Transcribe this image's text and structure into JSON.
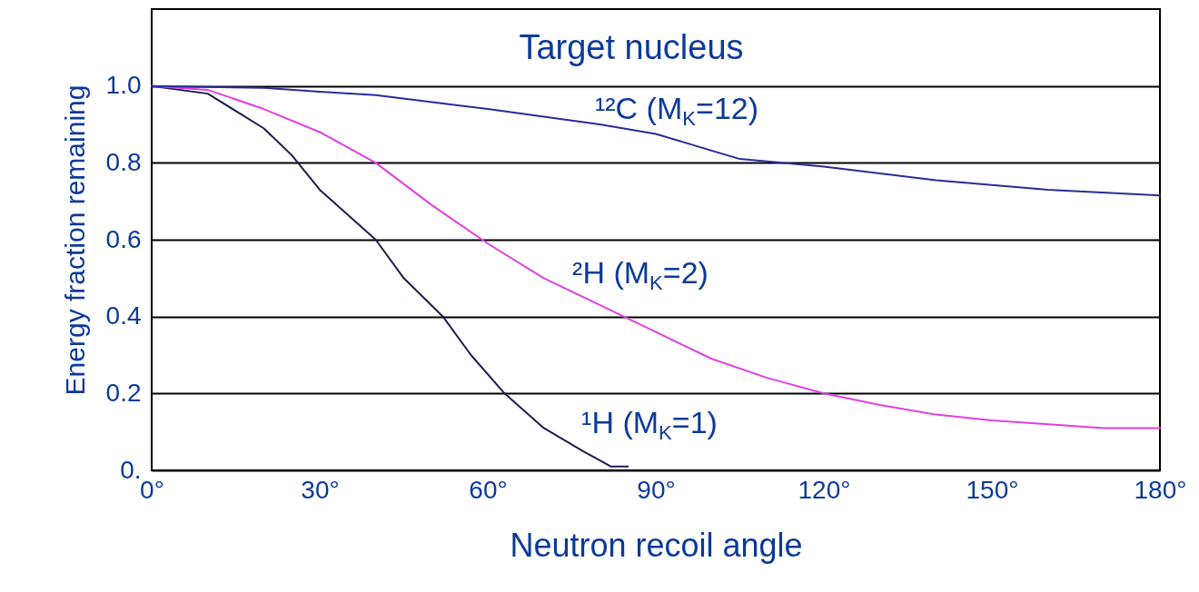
{
  "chart_data": {
    "type": "line",
    "xlabel": "Neutron recoil angle",
    "ylabel": "Energy fraction remaining",
    "annotations": [
      "Target nucleus"
    ],
    "series": [
      {
        "name": "¹H (M$_{K}$=1)",
        "color": "#1c1c50",
        "x": [
          0,
          10,
          20,
          25,
          30,
          40,
          45,
          52,
          57,
          63,
          70,
          77,
          82,
          85
        ],
        "values": [
          1.0,
          0.98,
          0.89,
          0.82,
          0.73,
          0.6,
          0.5,
          0.4,
          0.3,
          0.2,
          0.11,
          0.05,
          0.01,
          0.01
        ]
      },
      {
        "name": "²H (M$_{K}$=2)",
        "color": "#e040e0",
        "x": [
          0,
          10,
          20,
          30,
          40,
          50,
          60,
          70,
          80,
          90,
          100,
          110,
          120,
          130,
          140,
          150,
          160,
          170,
          180
        ],
        "values": [
          1.0,
          0.99,
          0.94,
          0.88,
          0.8,
          0.69,
          0.59,
          0.5,
          0.43,
          0.36,
          0.29,
          0.24,
          0.2,
          0.17,
          0.145,
          0.13,
          0.12,
          0.11,
          0.11
        ]
      },
      {
        "name": "¹²C (M$_{K}$=12)",
        "color": "#2a2a9a",
        "x": [
          0,
          20,
          30,
          40,
          60,
          80,
          90,
          105,
          120,
          140,
          160,
          180
        ],
        "values": [
          1.0,
          0.995,
          0.985,
          0.976,
          0.94,
          0.9,
          0.875,
          0.81,
          0.79,
          0.755,
          0.73,
          0.715
        ]
      }
    ],
    "xlim": [
      0,
      180
    ],
    "xticks": [
      {
        "value": 0,
        "label": "0°"
      },
      {
        "value": 30,
        "label": "30°"
      },
      {
        "value": 60,
        "label": "60°"
      },
      {
        "value": 90,
        "label": "90°"
      },
      {
        "value": 120,
        "label": "120°"
      },
      {
        "value": 150,
        "label": "150°"
      },
      {
        "value": 180,
        "label": "180°"
      }
    ],
    "ylim": [
      0,
      1.2
    ],
    "yticks": [
      {
        "value": 0,
        "label": "0."
      },
      0.2,
      0.4,
      0.6,
      0.8,
      {
        "value": 1,
        "label": "1.0"
      }
    ],
    "grid": "y",
    "line_style": "solid",
    "marker": "none"
  }
}
